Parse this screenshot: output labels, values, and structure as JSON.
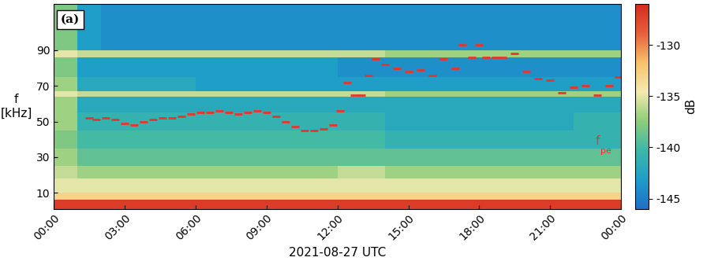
{
  "chart_data": {
    "type": "spectrogram",
    "panel_label": "(a)",
    "xlabel": "2021-08-27 UTC",
    "ylabel": "f\n[kHz]",
    "xlim": [
      0,
      24
    ],
    "xticks": [
      {
        "value": 0,
        "label": "00:00"
      },
      {
        "value": 3,
        "label": "03:00"
      },
      {
        "value": 6,
        "label": "06:00"
      },
      {
        "value": 9,
        "label": "09:00"
      },
      {
        "value": 12,
        "label": "12:00"
      },
      {
        "value": 15,
        "label": "15:00"
      },
      {
        "value": 18,
        "label": "18:00"
      },
      {
        "value": 21,
        "label": "21:00"
      },
      {
        "value": 24,
        "label": "00:00"
      }
    ],
    "ylim": [
      1,
      116
    ],
    "yticks": [
      10,
      30,
      50,
      70,
      90
    ],
    "time_edges": [
      0,
      1,
      2,
      4,
      6,
      8,
      10,
      12,
      14,
      16,
      18,
      20,
      22,
      24
    ],
    "freq_edges": [
      1,
      6,
      10,
      18,
      25,
      35,
      45,
      55,
      64,
      67,
      75,
      86,
      90,
      100,
      116
    ],
    "cells": [
      [
        -127,
        -127,
        -127,
        -127,
        -127,
        -127,
        -127,
        -127,
        -127,
        -127,
        -127,
        -127,
        -127
      ],
      [
        -133,
        -133,
        -133,
        -133,
        -133,
        -133,
        -133,
        -133,
        -133,
        -133,
        -133,
        -133,
        -133
      ],
      [
        -135,
        -135,
        -135,
        -135,
        -135,
        -135,
        -135,
        -135,
        -135,
        -135,
        -135,
        -135,
        -135
      ],
      [
        -136,
        -137,
        -137,
        -137,
        -137,
        -137,
        -137,
        -136,
        -137,
        -137,
        -137,
        -137,
        -137
      ],
      [
        -137,
        -139,
        -139,
        -139,
        -139,
        -139,
        -139,
        -139,
        -139,
        -139,
        -139,
        -139,
        -139
      ],
      [
        -138,
        -140,
        -140,
        -140,
        -140,
        -140,
        -140,
        -140,
        -141,
        -141,
        -141,
        -141,
        -141
      ],
      [
        -137,
        -141,
        -141,
        -141,
        -141,
        -141,
        -141,
        -141,
        -142,
        -142,
        -142,
        -142,
        -141
      ],
      [
        -137,
        -142,
        -142,
        -142,
        -142,
        -142,
        -142,
        -142,
        -142,
        -142,
        -142,
        -142,
        -142
      ],
      [
        -135,
        -136,
        -136,
        -136,
        -136,
        -136,
        -136,
        -136,
        -137,
        -137,
        -137,
        -137,
        -137
      ],
      [
        -137,
        -142,
        -142,
        -142,
        -143,
        -143,
        -143,
        -143,
        -143,
        -143,
        -143,
        -143,
        -143
      ],
      [
        -138,
        -143,
        -143,
        -143,
        -143,
        -143,
        -143,
        -144,
        -144,
        -144,
        -144,
        -144,
        -144
      ],
      [
        -135,
        -136,
        -136,
        -136,
        -136,
        -136,
        -136,
        -136,
        -137,
        -137,
        -137,
        -137,
        -137
      ],
      [
        -138,
        -143,
        -144,
        -144,
        -144,
        -144,
        -144,
        -144,
        -144,
        -144,
        -144,
        -144,
        -144
      ],
      [
        -138,
        -143,
        -144,
        -144,
        -144,
        -144,
        -144,
        -144,
        -144,
        -144,
        -144,
        -144,
        -144
      ]
    ],
    "colorbar": {
      "label": "dB",
      "range": [
        -146,
        -126
      ],
      "ticks": [
        -145,
        -140,
        -135,
        -130
      ]
    },
    "series": [
      {
        "type": "scatter",
        "color": "#e8352a",
        "marker": "dash",
        "line_style": "none",
        "x": [
          1.5,
          1.8,
          2.2,
          2.6,
          3.0,
          3.4,
          3.8,
          4.2,
          4.6,
          5.0,
          5.4,
          5.8,
          6.2,
          6.6,
          7.0,
          7.4,
          7.8,
          8.2,
          8.6,
          9.0,
          9.4,
          9.8,
          10.2,
          10.6,
          11.0,
          11.4,
          11.8,
          12.1,
          12.4,
          12.7,
          13.0,
          13.3,
          13.6,
          14.0,
          14.5,
          15.0,
          15.5,
          16.0,
          16.5,
          17.0,
          17.3,
          17.7,
          18.0,
          18.3,
          18.7,
          19.0,
          19.5,
          20.0,
          20.5,
          21.0,
          21.5,
          22.0,
          22.5,
          23.0,
          23.5,
          23.9
        ],
        "values": [
          52,
          51,
          52,
          51,
          49,
          48,
          50,
          51,
          52,
          52,
          53,
          54,
          55,
          55,
          56,
          55,
          54,
          55,
          56,
          55,
          53,
          50,
          47,
          45,
          45,
          46,
          48,
          56,
          72,
          65,
          65,
          76,
          85,
          82,
          80,
          78,
          79,
          76,
          85,
          80,
          93,
          86,
          93,
          86,
          86,
          86,
          88,
          78,
          74,
          73,
          66,
          69,
          70,
          65,
          70,
          75
        ]
      }
    ],
    "annotation": {
      "text": "f",
      "subscript": "pe"
    }
  }
}
